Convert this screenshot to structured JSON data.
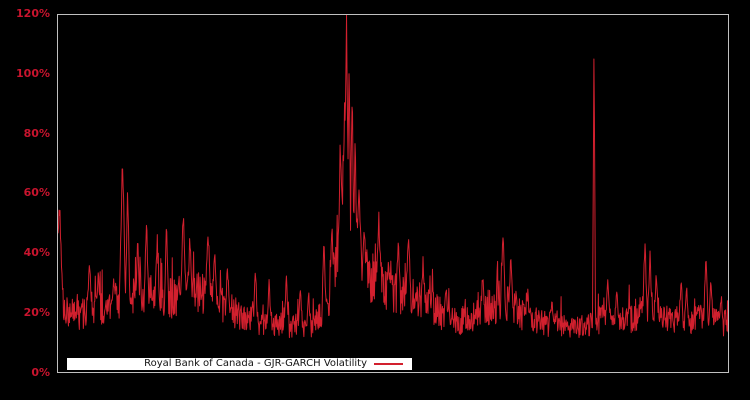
{
  "figure": {
    "background_color": "#000000"
  },
  "legend": {
    "label": "Royal Bank of Canada - GJR-GARCH Volatility",
    "sample": "red-line"
  },
  "chart_data": {
    "type": "line",
    "title": "",
    "xlabel": "",
    "ylabel": "",
    "series_name": "Royal Bank of Canada - GJR-GARCH Volatility",
    "ylim": [
      0,
      120
    ],
    "y_ticks": [
      "0%",
      "20%",
      "40%",
      "60%",
      "80%",
      "100%",
      "120%"
    ],
    "x_tick_labels": [],
    "grid": false,
    "legend_position": "bottom-left-inside",
    "line_color": "#d2202e",
    "tick_label_color": "#c9142e",
    "axis_color": "#c0c0c0",
    "plot_background": "#000000",
    "description": "Daily GJR-GARCH volatility series in percent; noisy baseline near 15-25% with spike clusters, a crisis hump peaking at 120% around 43% of the x-range and a single thin spike to 117% around 80% of the x-range.",
    "n_points": 1350,
    "baseline_keypoints": [
      [
        0.0,
        40
      ],
      [
        0.01,
        20
      ],
      [
        0.03,
        19
      ],
      [
        0.06,
        21
      ],
      [
        0.09,
        24
      ],
      [
        0.1,
        26
      ],
      [
        0.12,
        24
      ],
      [
        0.14,
        26
      ],
      [
        0.16,
        24
      ],
      [
        0.19,
        27
      ],
      [
        0.22,
        26
      ],
      [
        0.25,
        22
      ],
      [
        0.28,
        18
      ],
      [
        0.31,
        16
      ],
      [
        0.33,
        17
      ],
      [
        0.36,
        15
      ],
      [
        0.38,
        16
      ],
      [
        0.4,
        22
      ],
      [
        0.414,
        34
      ],
      [
        0.424,
        52
      ],
      [
        0.43,
        68
      ],
      [
        0.436,
        58
      ],
      [
        0.445,
        44
      ],
      [
        0.46,
        33
      ],
      [
        0.48,
        30
      ],
      [
        0.5,
        28
      ],
      [
        0.52,
        26
      ],
      [
        0.545,
        24
      ],
      [
        0.57,
        20
      ],
      [
        0.6,
        17
      ],
      [
        0.62,
        19
      ],
      [
        0.64,
        20
      ],
      [
        0.665,
        24
      ],
      [
        0.68,
        22
      ],
      [
        0.7,
        18
      ],
      [
        0.73,
        16
      ],
      [
        0.76,
        15
      ],
      [
        0.79,
        15
      ],
      [
        0.805,
        17
      ],
      [
        0.82,
        19
      ],
      [
        0.84,
        17
      ],
      [
        0.86,
        18
      ],
      [
        0.88,
        22
      ],
      [
        0.895,
        20
      ],
      [
        0.915,
        17
      ],
      [
        0.93,
        18
      ],
      [
        0.95,
        17
      ],
      [
        0.965,
        20
      ],
      [
        0.98,
        17
      ],
      [
        1.0,
        16
      ]
    ],
    "spikes": [
      [
        0.002,
        57,
        0.004
      ],
      [
        0.047,
        36,
        0.004
      ],
      [
        0.06,
        34,
        0.003
      ],
      [
        0.083,
        30,
        0.003
      ],
      [
        0.0963,
        72,
        0.0045
      ],
      [
        0.104,
        62,
        0.003
      ],
      [
        0.119,
        43,
        0.003
      ],
      [
        0.132,
        50,
        0.0035
      ],
      [
        0.148,
        45,
        0.003
      ],
      [
        0.162,
        48,
        0.003
      ],
      [
        0.187,
        52,
        0.004
      ],
      [
        0.197,
        46,
        0.003
      ],
      [
        0.224,
        48,
        0.004
      ],
      [
        0.234,
        41,
        0.003
      ],
      [
        0.253,
        36,
        0.003
      ],
      [
        0.2946,
        35,
        0.003
      ],
      [
        0.315,
        30,
        0.003
      ],
      [
        0.3408,
        33,
        0.003
      ],
      [
        0.3616,
        28,
        0.0028
      ],
      [
        0.374,
        27,
        0.0025
      ],
      [
        0.397,
        45,
        0.003
      ],
      [
        0.409,
        48,
        0.003
      ],
      [
        0.4215,
        76,
        0.003
      ],
      [
        0.428,
        95,
        0.0025
      ],
      [
        0.4305,
        120,
        0.0028
      ],
      [
        0.4345,
        108,
        0.002
      ],
      [
        0.439,
        97,
        0.0022
      ],
      [
        0.4435,
        85,
        0.002
      ],
      [
        0.4495,
        62,
        0.003
      ],
      [
        0.457,
        47,
        0.003
      ],
      [
        0.479,
        51,
        0.0035
      ],
      [
        0.493,
        36,
        0.003
      ],
      [
        0.508,
        43,
        0.003
      ],
      [
        0.523,
        46,
        0.0035
      ],
      [
        0.545,
        37,
        0.003
      ],
      [
        0.579,
        29,
        0.003
      ],
      [
        0.634,
        33,
        0.003
      ],
      [
        0.664,
        47,
        0.0035
      ],
      [
        0.676,
        39,
        0.003
      ],
      [
        0.701,
        27,
        0.003
      ],
      [
        0.737,
        24,
        0.003
      ],
      [
        0.8,
        117,
        0.0022
      ],
      [
        0.8205,
        31,
        0.003
      ],
      [
        0.834,
        29,
        0.003
      ],
      [
        0.876,
        44,
        0.0032
      ],
      [
        0.8835,
        39,
        0.0028
      ],
      [
        0.893,
        34,
        0.0028
      ],
      [
        0.93,
        31,
        0.003
      ],
      [
        0.938,
        29,
        0.0028
      ],
      [
        0.967,
        39,
        0.003
      ],
      [
        0.9745,
        31,
        0.0028
      ],
      [
        0.99,
        26,
        0.0028
      ]
    ],
    "noise": {
      "seed": 42,
      "lo": 0.72,
      "span": 0.55,
      "burst_prob": 0.1,
      "burst_amp": 0.45,
      "min": 11.5
    }
  }
}
